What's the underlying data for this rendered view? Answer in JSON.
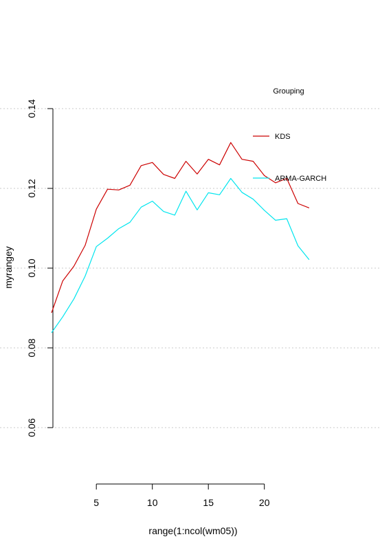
{
  "chart_data": {
    "type": "line",
    "xlabel": "range(1:ncol(wm05))",
    "ylabel": "myrangey",
    "xlim": [
      1,
      24
    ],
    "ylim": [
      0.06,
      0.14
    ],
    "xticks": [
      5,
      10,
      15,
      20
    ],
    "yticks": [
      0.06,
      0.08,
      0.1,
      0.12,
      0.14
    ],
    "xtick_labels": [
      "5",
      "10",
      "15",
      "20"
    ],
    "ytick_labels": [
      "0.06",
      "0.08",
      "0.10",
      "0.12",
      "0.14"
    ],
    "grid": "horizontal dotted",
    "legend": {
      "title": "Grouping",
      "position": "top-right"
    },
    "x": [
      1,
      2,
      3,
      4,
      5,
      6,
      7,
      8,
      9,
      10,
      11,
      12,
      13,
      14,
      15,
      16,
      17,
      18,
      19,
      20,
      21,
      22,
      23,
      24
    ],
    "series": [
      {
        "name": "KDS",
        "color": "#cc0000",
        "values": [
          0.0888,
          0.0968,
          0.1005,
          0.1057,
          0.1148,
          0.1198,
          0.1196,
          0.1208,
          0.1257,
          0.1265,
          0.1235,
          0.1225,
          0.1268,
          0.1236,
          0.1273,
          0.1259,
          0.1315,
          0.1273,
          0.1268,
          0.1232,
          0.1214,
          0.1225,
          0.1162,
          0.1151
        ]
      },
      {
        "name": "ARMA-GARCH",
        "color": "#00e5ee",
        "values": [
          0.0838,
          0.0878,
          0.0923,
          0.098,
          0.1054,
          0.1075,
          0.1099,
          0.1115,
          0.1153,
          0.1168,
          0.1142,
          0.1133,
          0.1193,
          0.1146,
          0.1189,
          0.1184,
          0.1225,
          0.119,
          0.1173,
          0.1145,
          0.112,
          0.1124,
          0.1056,
          0.1021
        ]
      }
    ]
  }
}
